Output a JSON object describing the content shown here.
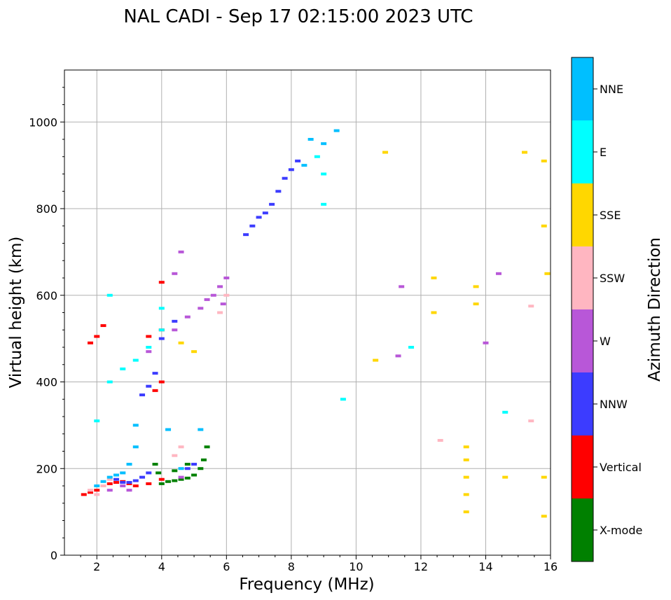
{
  "chart_data": {
    "type": "scatter",
    "title": "NAL CADI - Sep 17 02:15:00 2023 UTC",
    "xlabel": "Frequency (MHz)",
    "ylabel": "Virtual height (km)",
    "xlim": [
      1,
      16
    ],
    "ylim": [
      0,
      1120
    ],
    "xticks": [
      2,
      4,
      6,
      8,
      10,
      12,
      14,
      16
    ],
    "yticks": [
      0,
      200,
      400,
      600,
      800,
      1000
    ],
    "grid": true,
    "colorbar": {
      "label": "Azimuth Direction",
      "categories": [
        {
          "name": "X-mode",
          "color": "#008000"
        },
        {
          "name": "Vertical",
          "color": "#ff0000"
        },
        {
          "name": "NNW",
          "color": "#3c3cff"
        },
        {
          "name": "W",
          "color": "#b857d8"
        },
        {
          "name": "SSW",
          "color": "#ffb6c1"
        },
        {
          "name": "SSE",
          "color": "#ffd700"
        },
        {
          "name": "E",
          "color": "#00ffff"
        },
        {
          "name": "NNE",
          "color": "#00bfff"
        }
      ]
    },
    "traces": [
      {
        "category": "Vertical",
        "points": [
          [
            1.6,
            140
          ],
          [
            1.8,
            145
          ],
          [
            2.0,
            150
          ],
          [
            2.2,
            160
          ],
          [
            2.4,
            165
          ],
          [
            2.6,
            168
          ],
          [
            2.8,
            170
          ],
          [
            3.0,
            165
          ],
          [
            3.2,
            160
          ],
          [
            3.6,
            165
          ],
          [
            4.0,
            175
          ],
          [
            1.8,
            490
          ],
          [
            2.0,
            505
          ],
          [
            2.2,
            530
          ],
          [
            3.6,
            505
          ],
          [
            4.0,
            520
          ],
          [
            4.0,
            630
          ],
          [
            4.0,
            400
          ],
          [
            3.8,
            380
          ]
        ]
      },
      {
        "category": "X-mode",
        "points": [
          [
            4.0,
            165
          ],
          [
            4.2,
            170
          ],
          [
            4.4,
            172
          ],
          [
            4.6,
            175
          ],
          [
            4.8,
            178
          ],
          [
            5.0,
            185
          ],
          [
            5.2,
            200
          ],
          [
            5.3,
            220
          ],
          [
            5.4,
            250
          ],
          [
            3.8,
            210
          ],
          [
            3.9,
            190
          ],
          [
            4.4,
            195
          ],
          [
            4.8,
            210
          ]
        ]
      },
      {
        "category": "NNW",
        "points": [
          [
            2.6,
            175
          ],
          [
            2.8,
            168
          ],
          [
            3.0,
            168
          ],
          [
            3.2,
            172
          ],
          [
            3.4,
            180
          ],
          [
            3.6,
            190
          ],
          [
            4.8,
            200
          ],
          [
            5.0,
            210
          ],
          [
            3.4,
            370
          ],
          [
            3.6,
            390
          ],
          [
            3.8,
            420
          ],
          [
            4.0,
            500
          ],
          [
            4.4,
            540
          ],
          [
            6.6,
            740
          ],
          [
            6.8,
            760
          ],
          [
            7.0,
            780
          ],
          [
            7.2,
            790
          ],
          [
            7.4,
            810
          ],
          [
            7.6,
            840
          ],
          [
            7.8,
            870
          ],
          [
            8.0,
            890
          ],
          [
            8.2,
            910
          ]
        ]
      },
      {
        "category": "W",
        "points": [
          [
            2.4,
            150
          ],
          [
            2.8,
            160
          ],
          [
            3.0,
            150
          ],
          [
            4.6,
            180
          ],
          [
            3.6,
            470
          ],
          [
            4.4,
            520
          ],
          [
            4.8,
            550
          ],
          [
            5.2,
            570
          ],
          [
            5.4,
            590
          ],
          [
            5.6,
            600
          ],
          [
            5.8,
            620
          ],
          [
            6.0,
            640
          ],
          [
            5.9,
            580
          ],
          [
            4.4,
            650
          ],
          [
            4.6,
            700
          ],
          [
            11.3,
            460
          ],
          [
            11.4,
            620
          ],
          [
            14.0,
            490
          ],
          [
            14.4,
            650
          ]
        ]
      },
      {
        "category": "SSW",
        "points": [
          [
            1.8,
            150
          ],
          [
            2.0,
            140
          ],
          [
            2.2,
            160
          ],
          [
            2.4,
            175
          ],
          [
            2.6,
            185
          ],
          [
            2.8,
            190
          ],
          [
            4.4,
            230
          ],
          [
            4.6,
            250
          ],
          [
            5.8,
            560
          ],
          [
            6.0,
            600
          ],
          [
            12.6,
            265
          ],
          [
            15.4,
            310
          ],
          [
            15.4,
            575
          ]
        ]
      },
      {
        "category": "SSE",
        "points": [
          [
            4.6,
            490
          ],
          [
            5.0,
            470
          ],
          [
            10.6,
            450
          ],
          [
            10.9,
            930
          ],
          [
            12.4,
            560
          ],
          [
            12.4,
            640
          ],
          [
            13.4,
            100
          ],
          [
            13.4,
            140
          ],
          [
            13.4,
            180
          ],
          [
            13.4,
            220
          ],
          [
            13.4,
            250
          ],
          [
            13.7,
            580
          ],
          [
            13.7,
            620
          ],
          [
            14.6,
            180
          ],
          [
            15.2,
            930
          ],
          [
            15.8,
            90
          ],
          [
            15.8,
            180
          ],
          [
            15.8,
            760
          ],
          [
            15.8,
            910
          ],
          [
            15.9,
            650
          ]
        ]
      },
      {
        "category": "E",
        "points": [
          [
            2.0,
            310
          ],
          [
            2.4,
            400
          ],
          [
            2.8,
            430
          ],
          [
            3.2,
            450
          ],
          [
            3.6,
            480
          ],
          [
            4.0,
            520
          ],
          [
            4.0,
            570
          ],
          [
            2.4,
            600
          ],
          [
            9.0,
            880
          ],
          [
            9.0,
            810
          ],
          [
            8.8,
            920
          ],
          [
            9.6,
            360
          ],
          [
            11.7,
            480
          ],
          [
            14.6,
            330
          ]
        ]
      },
      {
        "category": "NNE",
        "points": [
          [
            2.0,
            160
          ],
          [
            2.2,
            170
          ],
          [
            2.4,
            180
          ],
          [
            2.6,
            185
          ],
          [
            2.8,
            190
          ],
          [
            3.0,
            210
          ],
          [
            3.2,
            250
          ],
          [
            3.2,
            300
          ],
          [
            4.2,
            290
          ],
          [
            4.6,
            200
          ],
          [
            5.2,
            290
          ],
          [
            8.4,
            900
          ],
          [
            8.6,
            960
          ],
          [
            9.0,
            950
          ],
          [
            9.4,
            980
          ]
        ]
      }
    ]
  }
}
